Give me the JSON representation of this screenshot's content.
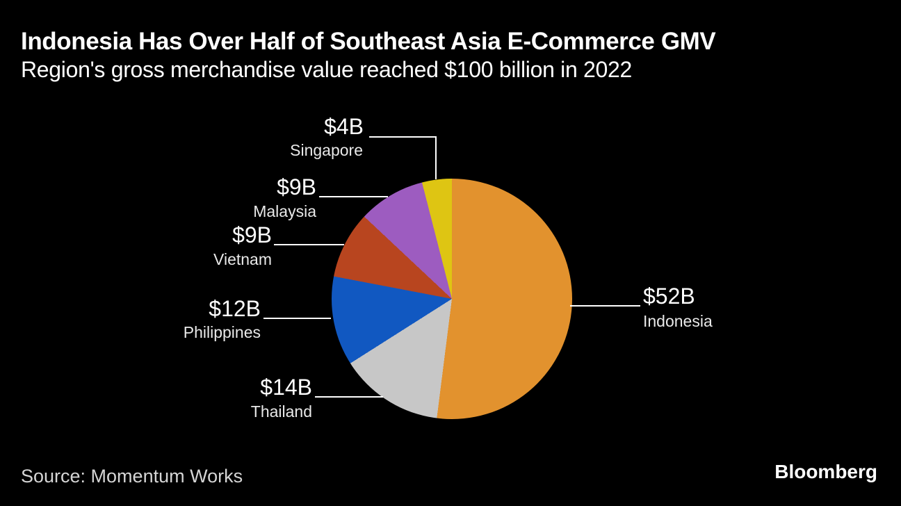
{
  "chart_data": {
    "type": "pie",
    "title": "Indonesia Has Over Half of Southeast Asia E-Commerce GMV",
    "subtitle": "Region's gross merchandise value reached $100 billion in 2022",
    "source": "Source: Momentum Works",
    "unit": "billions of USD",
    "total_value": 100,
    "start_angle_deg": 0,
    "direction": "clockwise",
    "legend": "none (direct callout labels)",
    "background_color": "#000000",
    "callout_line_color": "#ffffff",
    "segments": [
      {
        "label": "Indonesia",
        "value": 52,
        "display_value": "$52B",
        "color": "#E2922E"
      },
      {
        "label": "Thailand",
        "value": 14,
        "display_value": "$14B",
        "color": "#C7C7C7"
      },
      {
        "label": "Philippines",
        "value": 12,
        "display_value": "$12B",
        "color": "#1158C1"
      },
      {
        "label": "Vietnam",
        "value": 9,
        "display_value": "$9B",
        "color": "#B8451F"
      },
      {
        "label": "Malaysia",
        "value": 9,
        "display_value": "$9B",
        "color": "#9D5CC0"
      },
      {
        "label": "Singapore",
        "value": 4,
        "display_value": "$4B",
        "color": "#DEC513"
      }
    ]
  },
  "footer": {
    "brand": "Bloomberg"
  }
}
